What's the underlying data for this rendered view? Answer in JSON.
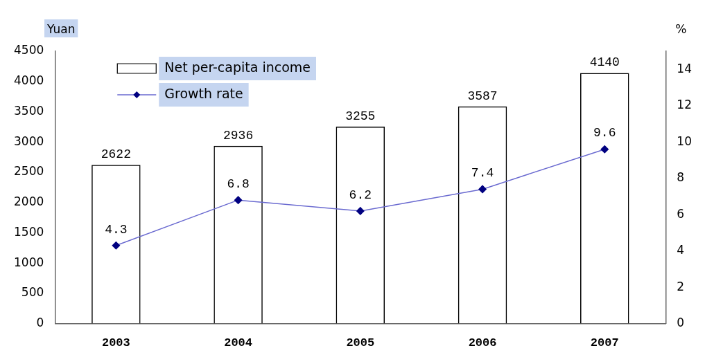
{
  "chart_data": {
    "type": "bar",
    "categories": [
      "2003",
      "2004",
      "2005",
      "2006",
      "2007"
    ],
    "ylabel": "Yuan",
    "y2label": "%",
    "ylim": [
      0,
      4500
    ],
    "yticks": [
      0,
      500,
      1000,
      1500,
      2000,
      2500,
      3000,
      3500,
      4000,
      4500
    ],
    "y2lim": [
      0,
      15
    ],
    "y2ticks": [
      0,
      2,
      4,
      6,
      8,
      10,
      12,
      14
    ],
    "series": [
      {
        "name": "Net per-capita income",
        "color": "#000000",
        "values": [
          2622,
          2936,
          3255,
          3587,
          4140
        ]
      },
      {
        "name": "Growth rate",
        "type": "line",
        "axis": "y2",
        "color": "#6a6ad0",
        "marker": "diamond",
        "values": [
          4.3,
          6.8,
          6.2,
          7.4,
          9.6
        ]
      }
    ],
    "data_labels": true,
    "legend": "top left",
    "grid": false
  }
}
